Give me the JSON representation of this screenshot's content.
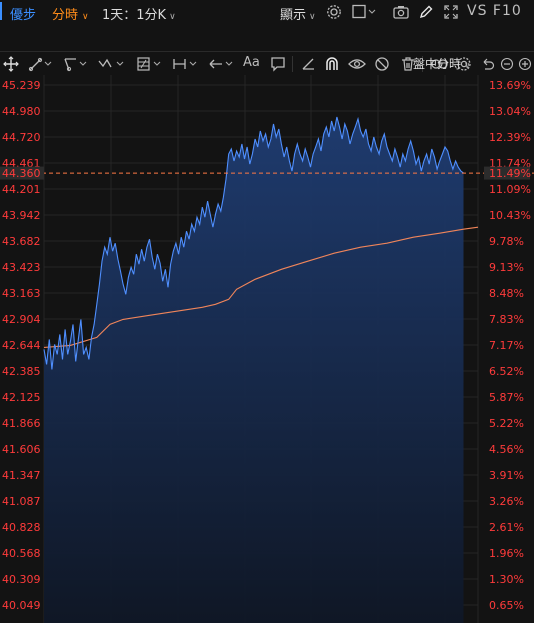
{
  "toolbar": {
    "tab_active": "優步",
    "tab_mode": "分時",
    "period": "1天：1分K",
    "display_label": "顯示",
    "vs_label": "VS",
    "f10_label": "F10",
    "icons": [
      "gear-icon",
      "square-icon",
      "camera-icon",
      "pencil-icon",
      "fullscreen-icon"
    ]
  },
  "drawing_tools": {
    "icons": [
      "crosshair-icon",
      "line-tool-icon",
      "channel-tool-icon",
      "wave-tool-icon",
      "fib-tool-icon",
      "range-tool-icon",
      "arrow-tool-icon",
      "text-tool-icon",
      "comment-icon",
      "angle-icon",
      "magnet-icon",
      "eye-icon",
      "hide-icon",
      "trash-icon",
      "link-icon",
      "settings-icon"
    ],
    "text_tool_label": "Aa"
  },
  "chart_controls": {
    "session_mode": "盤中分時",
    "icons": [
      "undo-icon",
      "zoom-out-icon",
      "zoom-in-icon"
    ]
  },
  "colors": {
    "price_line": "#4f8fff",
    "avg_line": "#f0855a",
    "axis_text": "#ff3b3b",
    "current_box": "#2c2c2c",
    "dash_line": "#ff7a45",
    "fill_top": "#1f3d73",
    "fill_bottom": "#101828"
  },
  "chart_data": {
    "type": "line",
    "current_price": "44.360",
    "current_pct": "11.49%",
    "y_labels": [
      "45.239",
      "44.980",
      "44.720",
      "44.461",
      "44.201",
      "43.942",
      "43.682",
      "43.423",
      "43.163",
      "42.904",
      "42.644",
      "42.385",
      "42.125",
      "41.866",
      "41.606",
      "41.347",
      "41.087",
      "40.828",
      "40.568",
      "40.309",
      "40.049"
    ],
    "pct_labels": [
      "13.69%",
      "13.04%",
      "12.39%",
      "11.74%",
      "11.09%",
      "10.43%",
      "9.78%",
      "9.13%",
      "8.48%",
      "7.83%",
      "7.17%",
      "6.52%",
      "5.87%",
      "5.22%",
      "4.56%",
      "3.91%",
      "3.26%",
      "2.61%",
      "1.96%",
      "1.30%",
      "0.65%"
    ],
    "ylim": [
      40.049,
      45.239
    ],
    "n_points": 330,
    "series": [
      {
        "key": "price",
        "values": [
          [
            0,
            42.6
          ],
          [
            2,
            42.45
          ],
          [
            4,
            42.7
          ],
          [
            6,
            42.4
          ],
          [
            8,
            42.65
          ],
          [
            10,
            42.55
          ],
          [
            12,
            42.75
          ],
          [
            14,
            42.5
          ],
          [
            16,
            42.8
          ],
          [
            18,
            42.55
          ],
          [
            20,
            42.68
          ],
          [
            22,
            42.85
          ],
          [
            24,
            42.48
          ],
          [
            26,
            42.7
          ],
          [
            28,
            42.9
          ],
          [
            30,
            42.55
          ],
          [
            32,
            42.62
          ],
          [
            34,
            42.5
          ],
          [
            36,
            42.72
          ],
          [
            38,
            42.85
          ],
          [
            40,
            43.05
          ],
          [
            42,
            43.25
          ],
          [
            44,
            43.48
          ],
          [
            46,
            43.62
          ],
          [
            48,
            43.55
          ],
          [
            50,
            43.72
          ],
          [
            52,
            43.58
          ],
          [
            54,
            43.66
          ],
          [
            56,
            43.5
          ],
          [
            58,
            43.38
          ],
          [
            60,
            43.25
          ],
          [
            62,
            43.15
          ],
          [
            64,
            43.32
          ],
          [
            66,
            43.42
          ],
          [
            68,
            43.35
          ],
          [
            70,
            43.55
          ],
          [
            72,
            43.45
          ],
          [
            74,
            43.6
          ],
          [
            76,
            43.48
          ],
          [
            78,
            43.62
          ],
          [
            80,
            43.7
          ],
          [
            82,
            43.52
          ],
          [
            84,
            43.4
          ],
          [
            86,
            43.55
          ],
          [
            88,
            43.46
          ],
          [
            90,
            43.28
          ],
          [
            92,
            43.4
          ],
          [
            94,
            43.22
          ],
          [
            96,
            43.45
          ],
          [
            98,
            43.58
          ],
          [
            100,
            43.66
          ],
          [
            102,
            43.55
          ],
          [
            104,
            43.72
          ],
          [
            106,
            43.62
          ],
          [
            108,
            43.78
          ],
          [
            110,
            43.7
          ],
          [
            112,
            43.85
          ],
          [
            114,
            43.78
          ],
          [
            116,
            43.92
          ],
          [
            118,
            43.85
          ],
          [
            120,
            44.02
          ],
          [
            122,
            43.92
          ],
          [
            124,
            44.08
          ],
          [
            126,
            43.95
          ],
          [
            128,
            43.82
          ],
          [
            130,
            43.95
          ],
          [
            132,
            44.05
          ],
          [
            134,
            43.98
          ],
          [
            136,
            44.12
          ],
          [
            138,
            44.3
          ],
          [
            140,
            44.55
          ],
          [
            142,
            44.6
          ],
          [
            144,
            44.48
          ],
          [
            146,
            44.58
          ],
          [
            148,
            44.52
          ],
          [
            150,
            44.65
          ],
          [
            152,
            44.5
          ],
          [
            154,
            44.62
          ],
          [
            156,
            44.45
          ],
          [
            158,
            44.55
          ],
          [
            160,
            44.7
          ],
          [
            162,
            44.62
          ],
          [
            164,
            44.78
          ],
          [
            166,
            44.68
          ],
          [
            168,
            44.75
          ],
          [
            170,
            44.62
          ],
          [
            172,
            44.7
          ],
          [
            174,
            44.85
          ],
          [
            176,
            44.72
          ],
          [
            178,
            44.8
          ],
          [
            180,
            44.65
          ],
          [
            182,
            44.52
          ],
          [
            184,
            44.62
          ],
          [
            186,
            44.48
          ],
          [
            188,
            44.38
          ],
          [
            190,
            44.55
          ],
          [
            192,
            44.65
          ],
          [
            194,
            44.55
          ],
          [
            196,
            44.48
          ],
          [
            198,
            44.6
          ],
          [
            200,
            44.52
          ],
          [
            202,
            44.42
          ],
          [
            204,
            44.55
          ],
          [
            206,
            44.62
          ],
          [
            208,
            44.7
          ],
          [
            210,
            44.58
          ],
          [
            212,
            44.75
          ],
          [
            214,
            44.82
          ],
          [
            216,
            44.72
          ],
          [
            218,
            44.88
          ],
          [
            220,
            44.78
          ],
          [
            222,
            44.92
          ],
          [
            224,
            44.82
          ],
          [
            226,
            44.7
          ],
          [
            228,
            44.85
          ],
          [
            230,
            44.78
          ],
          [
            232,
            44.65
          ],
          [
            234,
            44.75
          ],
          [
            236,
            44.82
          ],
          [
            238,
            44.9
          ],
          [
            240,
            44.78
          ],
          [
            242,
            44.72
          ],
          [
            244,
            44.8
          ],
          [
            246,
            44.65
          ],
          [
            248,
            44.58
          ],
          [
            250,
            44.72
          ],
          [
            252,
            44.62
          ],
          [
            254,
            44.55
          ],
          [
            256,
            44.68
          ],
          [
            258,
            44.75
          ],
          [
            260,
            44.62
          ],
          [
            262,
            44.55
          ],
          [
            264,
            44.48
          ],
          [
            266,
            44.6
          ],
          [
            268,
            44.52
          ],
          [
            270,
            44.42
          ],
          [
            272,
            44.55
          ],
          [
            274,
            44.48
          ],
          [
            276,
            44.6
          ],
          [
            278,
            44.68
          ],
          [
            280,
            44.58
          ],
          [
            282,
            44.45
          ],
          [
            284,
            44.52
          ],
          [
            286,
            44.38
          ],
          [
            288,
            44.48
          ],
          [
            290,
            44.55
          ],
          [
            292,
            44.45
          ],
          [
            294,
            44.6
          ],
          [
            296,
            44.52
          ],
          [
            298,
            44.4
          ],
          [
            300,
            44.48
          ],
          [
            302,
            44.55
          ],
          [
            304,
            44.62
          ],
          [
            306,
            44.58
          ],
          [
            308,
            44.48
          ],
          [
            310,
            44.4
          ],
          [
            312,
            44.48
          ],
          [
            314,
            44.42
          ],
          [
            316,
            44.38
          ],
          [
            318,
            44.36
          ]
        ]
      },
      {
        "key": "average",
        "values": [
          [
            0,
            42.62
          ],
          [
            20,
            42.64
          ],
          [
            40,
            42.72
          ],
          [
            50,
            42.85
          ],
          [
            60,
            42.9
          ],
          [
            80,
            42.94
          ],
          [
            100,
            42.98
          ],
          [
            120,
            43.02
          ],
          [
            130,
            43.05
          ],
          [
            140,
            43.1
          ],
          [
            146,
            43.2
          ],
          [
            160,
            43.3
          ],
          [
            180,
            43.4
          ],
          [
            200,
            43.48
          ],
          [
            220,
            43.56
          ],
          [
            240,
            43.62
          ],
          [
            260,
            43.66
          ],
          [
            280,
            43.72
          ],
          [
            300,
            43.76
          ],
          [
            318,
            43.8
          ],
          [
            329,
            43.82
          ]
        ]
      }
    ]
  }
}
